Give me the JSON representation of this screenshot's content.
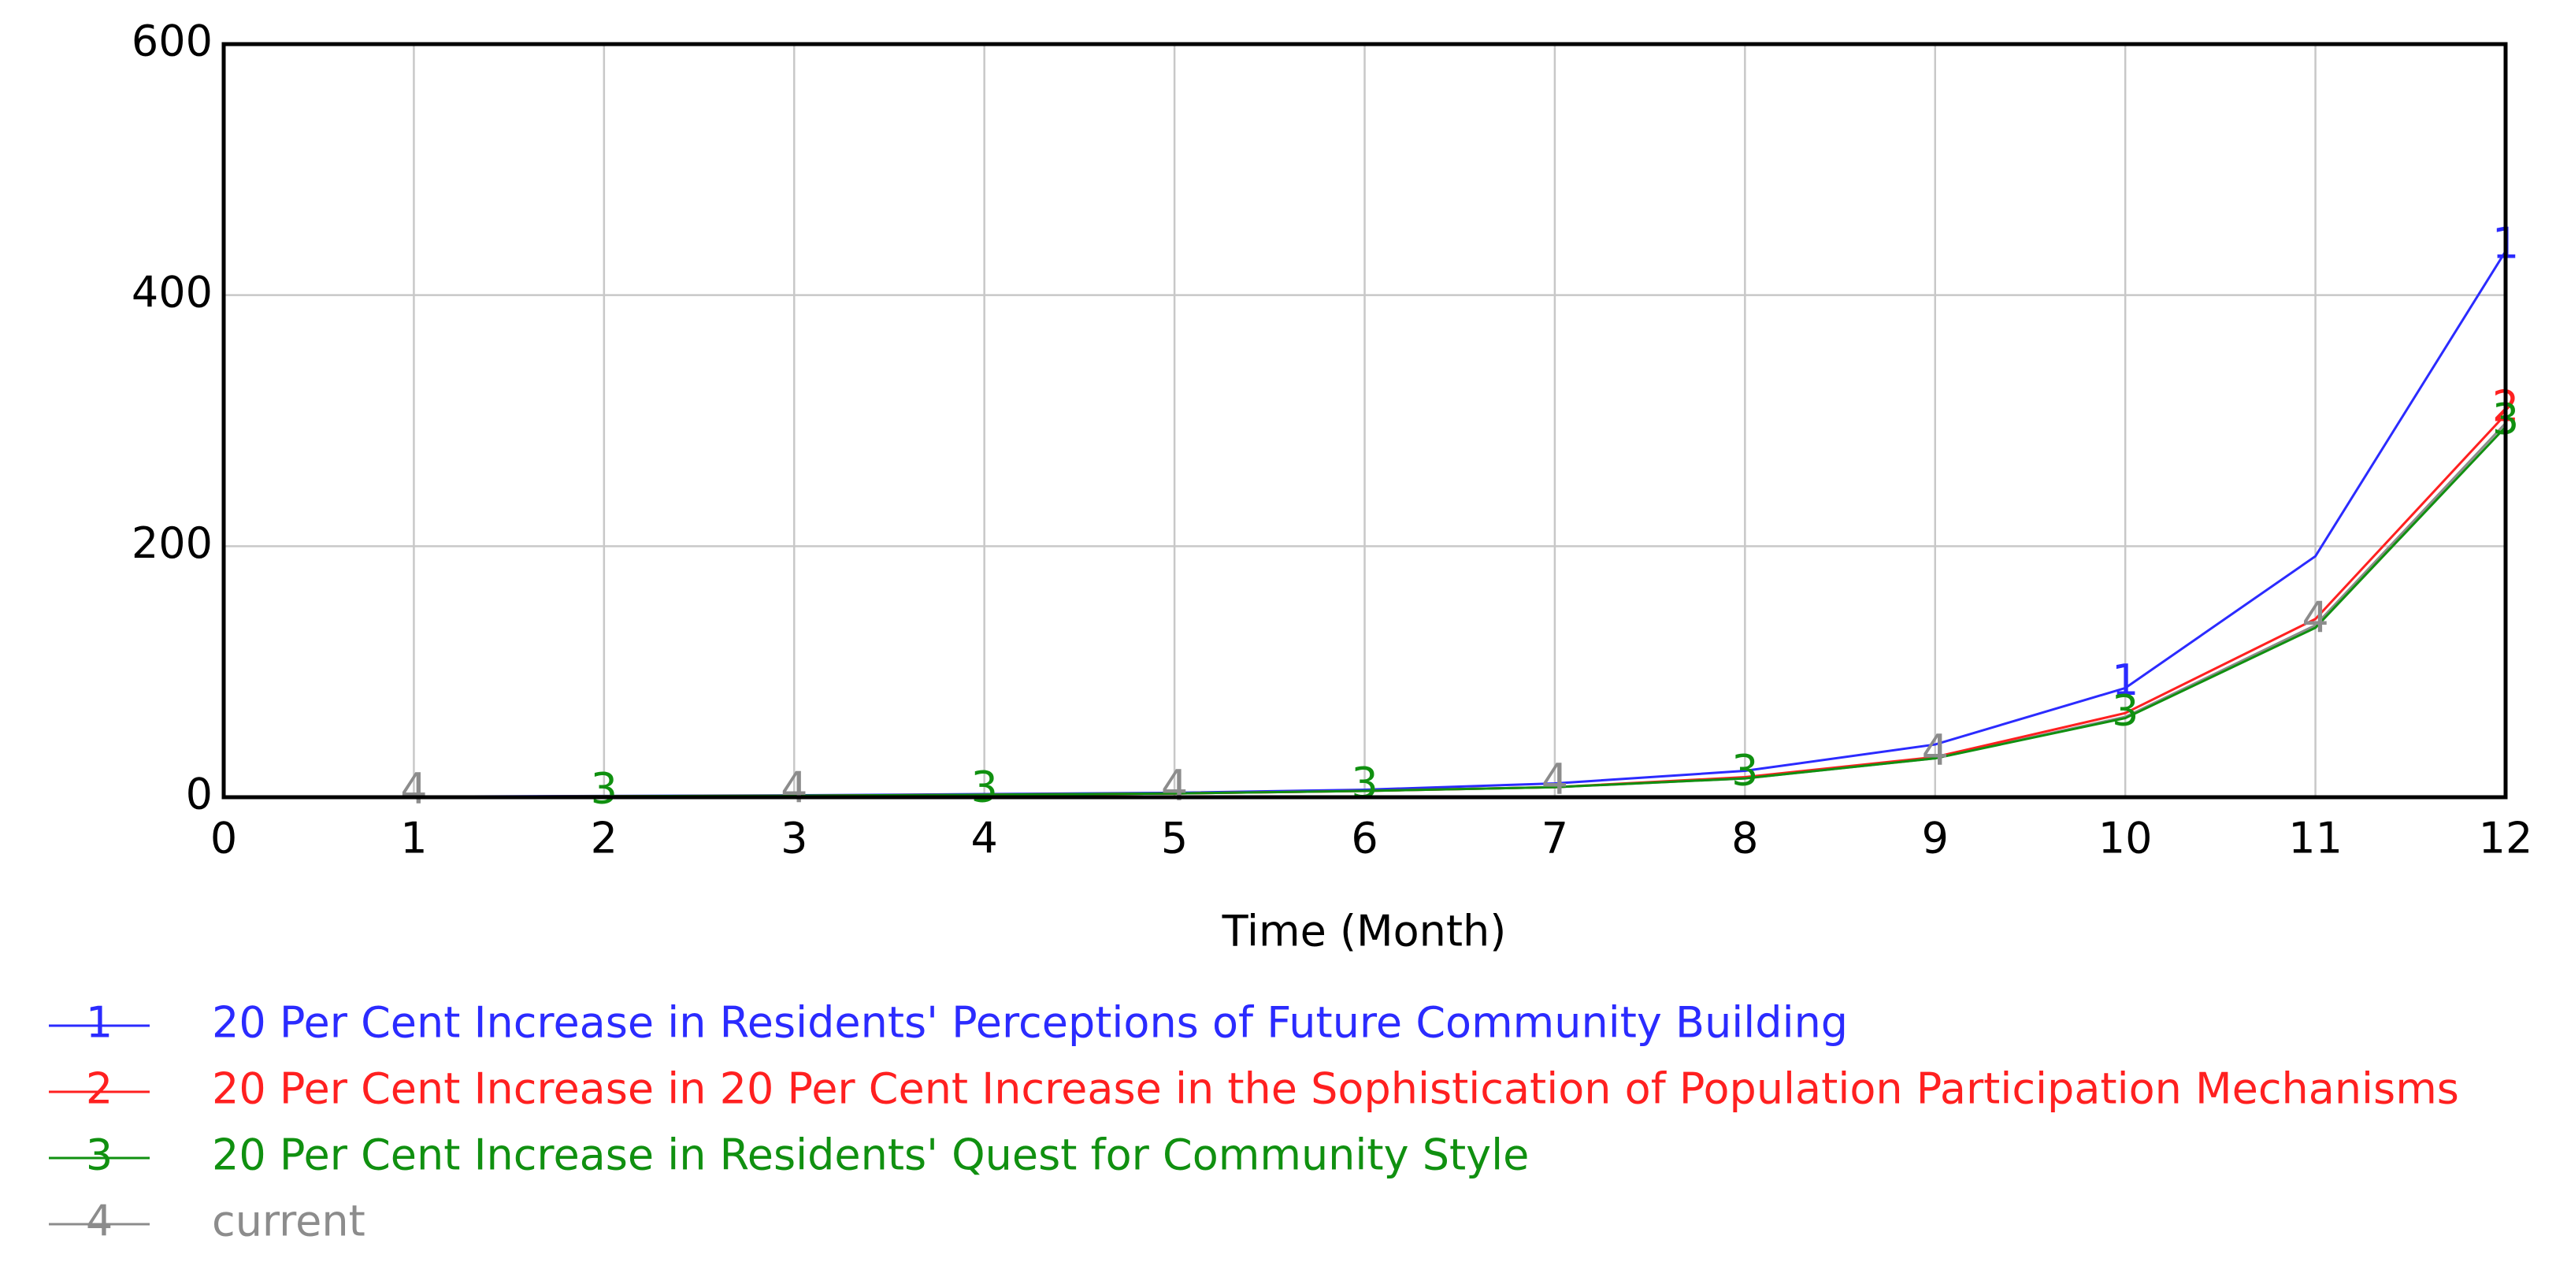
{
  "chart_data": {
    "type": "line",
    "x_label": "Time (Month)",
    "x": [
      0,
      1,
      2,
      3,
      4,
      5,
      6,
      7,
      8,
      9,
      10,
      11,
      12
    ],
    "xlim": [
      0,
      12
    ],
    "xticks": [
      0,
      1,
      2,
      3,
      4,
      5,
      6,
      7,
      8,
      9,
      10,
      11,
      12
    ],
    "ylim": [
      0,
      600
    ],
    "yticks": [
      0,
      200,
      400,
      600
    ],
    "grid": true,
    "legend": "bottom",
    "series": [
      {
        "name": "20 Per Cent Increase in Residents' Perceptions of Future Community Building",
        "marker": "1",
        "color": "#2b2bff",
        "values": [
          0,
          0.5,
          1,
          1.5,
          2.5,
          3.5,
          6,
          11,
          21,
          42,
          87,
          192,
          435
        ]
      },
      {
        "name": "20 Per Cent Increase in 20 Per Cent Increase in the Sophistication of Population Participation Mechanisms",
        "marker": "2",
        "color": "#ff2020",
        "values": [
          0,
          0.4,
          0.8,
          1.2,
          2,
          3,
          5,
          8,
          16,
          32,
          67,
          142,
          305
        ]
      },
      {
        "name": "20 Per Cent Increase in Residents' Quest for Community Style",
        "marker": "3",
        "color": "#109010",
        "values": [
          0,
          0.4,
          0.8,
          1.2,
          2,
          3,
          5,
          8,
          15,
          31,
          63,
          135,
          295
        ]
      },
      {
        "name": "current",
        "marker": "4",
        "color": "#8c8c8c",
        "values": [
          0,
          0.4,
          0.8,
          1.2,
          2,
          3,
          5,
          8,
          15,
          31,
          64,
          137,
          298
        ]
      }
    ]
  }
}
